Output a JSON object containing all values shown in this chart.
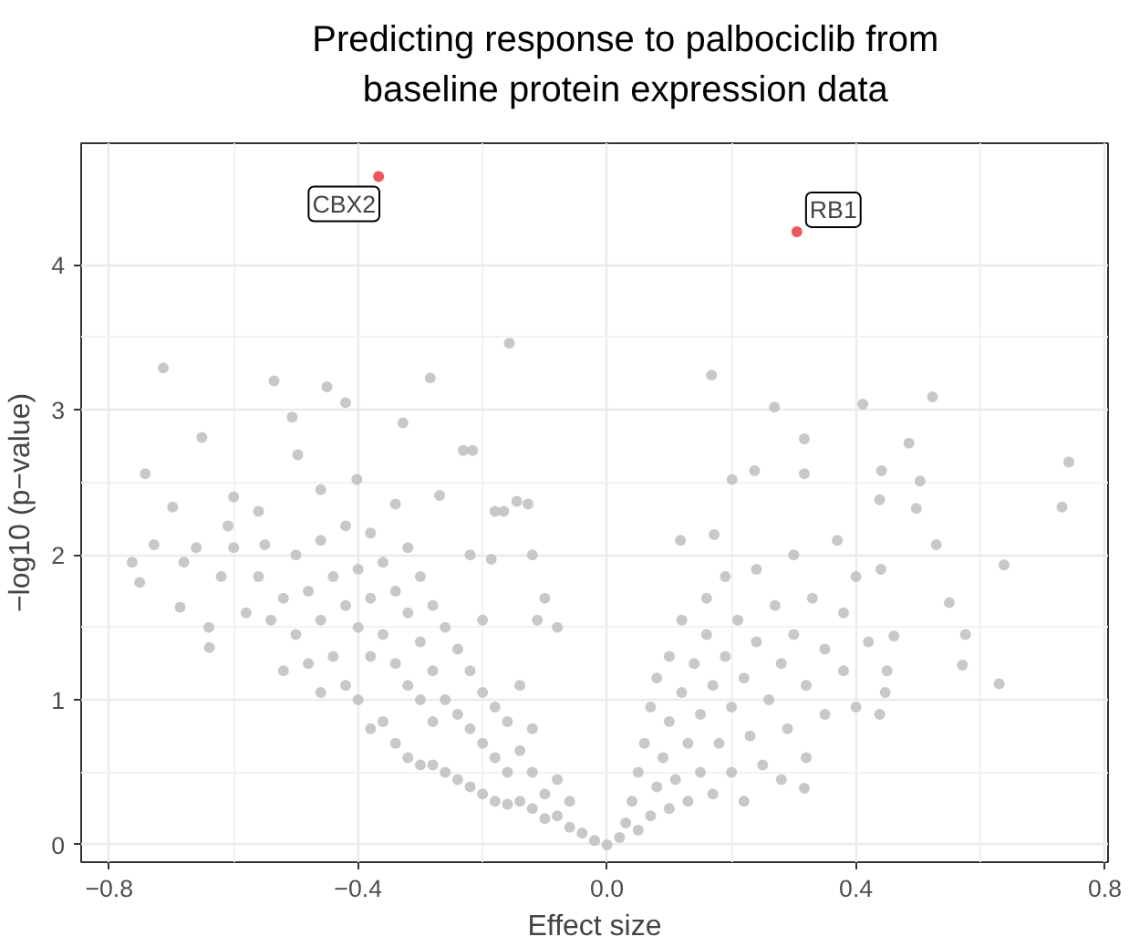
{
  "chart_data": {
    "type": "scatter",
    "title": "Predicting response to palbociclib from\nbaseline protein expression data",
    "xlabel": "Effect size",
    "ylabel": "−log10 (p−value)",
    "xlim": [
      -0.845,
      0.805
    ],
    "ylim": [
      -0.12,
      4.84
    ],
    "xticks": [
      -0.8,
      -0.4,
      {
        "value": 0,
        "label": "0.0"
      },
      0.4,
      0.8
    ],
    "yticks": [
      0,
      1,
      2,
      3,
      4
    ],
    "grid": true,
    "marker": "circle",
    "series": [
      {
        "color": "#bebebe",
        "x": [
          -0.713,
          -0.742,
          -0.535,
          -0.45,
          -0.42,
          -0.284,
          -0.157,
          -0.651,
          -0.698,
          -0.763,
          -0.751,
          -0.686,
          -0.639,
          -0.55,
          -0.497,
          -0.506,
          -0.402,
          -0.328,
          -0.231,
          -0.269,
          -0.166,
          -0.609,
          -0.728,
          -0.145,
          -0.127,
          -0.112,
          -0.186,
          -0.216,
          -0.02,
          -0.04,
          -0.06,
          -0.08,
          -0.1,
          -0.1,
          -0.12,
          -0.12,
          -0.14,
          -0.14,
          -0.16,
          -0.16,
          -0.16,
          -0.18,
          -0.18,
          -0.18,
          -0.2,
          -0.2,
          -0.2,
          -0.22,
          -0.22,
          -0.22,
          -0.24,
          -0.24,
          -0.24,
          -0.26,
          -0.26,
          -0.26,
          -0.28,
          -0.28,
          -0.28,
          -0.28,
          -0.3,
          -0.3,
          -0.3,
          -0.3,
          -0.32,
          -0.32,
          -0.32,
          -0.32,
          -0.34,
          -0.34,
          -0.34,
          -0.36,
          -0.36,
          -0.36,
          -0.38,
          -0.38,
          -0.38,
          -0.38,
          -0.4,
          -0.4,
          -0.4,
          -0.42,
          -0.42,
          -0.42,
          -0.44,
          -0.44,
          -0.46,
          -0.46,
          -0.46,
          -0.48,
          -0.48,
          -0.5,
          -0.5,
          -0.52,
          -0.52,
          -0.54,
          -0.56,
          -0.58,
          -0.6,
          -0.62,
          -0.64,
          -0.66,
          -0.68,
          -0.56,
          -0.6,
          -0.46,
          -0.34,
          -0.22,
          -0.2,
          -0.18,
          -0.14,
          -0.12,
          -0.08,
          -0.06,
          -0.1,
          -0.08,
          -0.12,
          0.168,
          0.269,
          0.411,
          0.523,
          0.742,
          0.731,
          0.638,
          0.63,
          0.571,
          0.576,
          0.55,
          0.485,
          0.317,
          0.317,
          0.237,
          0.201,
          0.441,
          0.503,
          0.497,
          0.529,
          0.438,
          0.118,
          0.172,
          0.461,
          0.447,
          0.438,
          0.317,
          0.02,
          0.03,
          0.04,
          0.05,
          0.05,
          0.06,
          0.07,
          0.07,
          0.08,
          0.08,
          0.09,
          0.1,
          0.1,
          0.1,
          0.11,
          0.12,
          0.12,
          0.13,
          0.13,
          0.14,
          0.15,
          0.15,
          0.16,
          0.16,
          0.17,
          0.17,
          0.18,
          0.19,
          0.19,
          0.2,
          0.2,
          0.21,
          0.22,
          0.22,
          0.23,
          0.24,
          0.24,
          0.25,
          0.26,
          0.27,
          0.28,
          0.28,
          0.29,
          0.3,
          0.3,
          0.32,
          0.32,
          0.33,
          0.35,
          0.35,
          0.37,
          0.38,
          0.38,
          0.4,
          0.4,
          0.42,
          0.44,
          0.45,
          0.0
        ],
        "values": [
          3.29,
          2.56,
          3.2,
          3.16,
          3.05,
          3.22,
          3.46,
          2.81,
          2.33,
          1.95,
          1.81,
          1.64,
          1.36,
          2.07,
          2.69,
          2.95,
          2.52,
          2.91,
          2.72,
          2.41,
          2.3,
          2.2,
          2.07,
          2.37,
          2.35,
          1.55,
          1.97,
          2.72,
          0.03,
          0.08,
          0.12,
          0.2,
          0.18,
          0.35,
          0.25,
          0.5,
          0.3,
          0.65,
          0.28,
          0.5,
          0.85,
          0.3,
          0.6,
          0.95,
          0.35,
          0.7,
          1.05,
          0.4,
          0.8,
          1.2,
          0.45,
          0.9,
          1.35,
          0.5,
          1.0,
          1.5,
          0.55,
          0.85,
          1.2,
          1.65,
          0.55,
          1.0,
          1.4,
          1.85,
          0.6,
          1.1,
          1.6,
          2.05,
          0.7,
          1.25,
          1.75,
          0.85,
          1.45,
          1.95,
          0.8,
          1.3,
          1.7,
          2.15,
          1.0,
          1.5,
          1.9,
          1.1,
          1.65,
          2.2,
          1.3,
          1.85,
          1.05,
          1.55,
          2.1,
          1.25,
          1.75,
          1.45,
          2.0,
          1.2,
          1.7,
          1.55,
          1.85,
          1.6,
          2.05,
          1.85,
          1.5,
          2.05,
          1.95,
          2.3,
          2.4,
          2.45,
          2.35,
          2.0,
          1.55,
          2.3,
          1.1,
          0.8,
          0.45,
          0.3,
          1.7,
          1.5,
          2.0,
          3.24,
          3.02,
          3.04,
          3.09,
          2.64,
          2.33,
          1.93,
          1.11,
          1.24,
          1.45,
          1.67,
          2.77,
          2.8,
          2.56,
          2.58,
          2.52,
          2.58,
          2.51,
          2.32,
          2.07,
          2.38,
          2.1,
          2.14,
          1.44,
          1.05,
          0.9,
          0.39,
          0.05,
          0.15,
          0.3,
          0.1,
          0.5,
          0.7,
          0.2,
          0.95,
          0.4,
          1.15,
          0.6,
          0.25,
          0.85,
          1.3,
          0.45,
          1.05,
          1.55,
          0.3,
          0.7,
          1.25,
          0.5,
          0.9,
          1.45,
          1.7,
          0.35,
          1.1,
          0.7,
          1.3,
          1.85,
          0.5,
          0.95,
          1.55,
          0.3,
          1.15,
          0.75,
          1.4,
          1.9,
          0.55,
          1.0,
          1.65,
          0.45,
          1.25,
          0.8,
          1.45,
          2.0,
          0.6,
          1.1,
          1.7,
          0.9,
          1.35,
          2.1,
          1.2,
          1.6,
          0.95,
          1.85,
          1.4,
          1.9,
          1.2,
          0.0
        ]
      },
      {
        "color": "#e8393d",
        "x": [
          -0.367,
          0.305
        ],
        "values": [
          4.61,
          4.23
        ]
      }
    ],
    "annotations": [
      {
        "text": "CBX2",
        "x": -0.367,
        "y": 4.61
      },
      {
        "text": "RB1",
        "x": 0.305,
        "y": 4.23
      }
    ]
  }
}
